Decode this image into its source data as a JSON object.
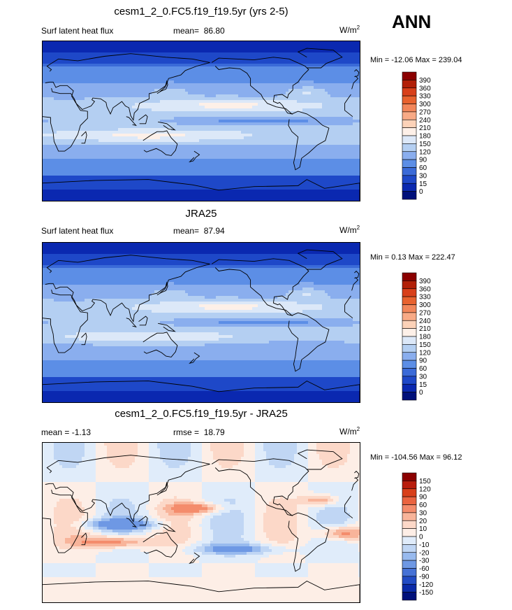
{
  "season": "ANN",
  "panels": [
    {
      "title": "cesm1_2_0.FC5.f19_f19.5yr (yrs 2-5)",
      "left_label": "Surf latent heat flux",
      "stat_label": "mean=",
      "stat_value": "86.80",
      "units": "W/m",
      "units_sup": "2",
      "minmax": "Min = -12.06 Max = 239.04",
      "palette": "abs"
    },
    {
      "title": "JRA25",
      "left_label": "Surf latent heat flux",
      "stat_label": "mean=",
      "stat_value": "87.94",
      "units": "W/m",
      "units_sup": "2",
      "minmax": "Min =  0.13 Max = 222.47",
      "palette": "abs"
    },
    {
      "title": "cesm1_2_0.FC5.f19_f19.5yr - JRA25",
      "left_label": "mean =  -1.13",
      "stat_label": "rmse =",
      "stat_value": "18.79",
      "units": "W/m",
      "units_sup": "2",
      "minmax": "Min = -104.56 Max =  96.12",
      "palette": "diff"
    }
  ],
  "chart_data": [
    {
      "type": "heatmap",
      "title": "cesm1_2_0.FC5.f19_f19.5yr (yrs 2-5)",
      "variable": "Surf latent heat flux",
      "units": "W/m2",
      "mean": 86.8,
      "min": -12.06,
      "max": 239.04,
      "colorbar_levels": [
        390,
        360,
        330,
        300,
        270,
        240,
        210,
        180,
        150,
        120,
        90,
        60,
        30,
        15,
        0
      ],
      "colorbar_colors": [
        "#8b0000",
        "#b22008",
        "#d8401a",
        "#e8622e",
        "#f2865a",
        "#f8aa86",
        "#fcd2b8",
        "#fdf0e8",
        "#dce8f8",
        "#b4cff2",
        "#8aaeee",
        "#5c8ee6",
        "#3a6ad8",
        "#1e48c8",
        "#0a28b0",
        "#00107a"
      ]
    },
    {
      "type": "heatmap",
      "title": "JRA25",
      "variable": "Surf latent heat flux",
      "units": "W/m2",
      "mean": 87.94,
      "min": 0.13,
      "max": 222.47,
      "colorbar_levels": [
        390,
        360,
        330,
        300,
        270,
        240,
        210,
        180,
        150,
        120,
        90,
        60,
        30,
        15,
        0
      ],
      "colorbar_colors": [
        "#8b0000",
        "#b22008",
        "#d8401a",
        "#e8622e",
        "#f2865a",
        "#f8aa86",
        "#fcd2b8",
        "#fdf0e8",
        "#dce8f8",
        "#b4cff2",
        "#8aaeee",
        "#5c8ee6",
        "#3a6ad8",
        "#1e48c8",
        "#0a28b0",
        "#00107a"
      ]
    },
    {
      "type": "heatmap",
      "title": "cesm1_2_0.FC5.f19_f19.5yr - JRA25",
      "units": "W/m2",
      "mean": -1.13,
      "rmse": 18.79,
      "min": -104.56,
      "max": 96.12,
      "colorbar_levels": [
        150,
        120,
        90,
        60,
        30,
        20,
        10,
        0,
        -10,
        -20,
        -30,
        -60,
        -90,
        -120,
        -150
      ],
      "colorbar_colors": [
        "#8b0000",
        "#b81c0c",
        "#d8401a",
        "#ea6440",
        "#f48c6c",
        "#f8b49a",
        "#fcd8c8",
        "#fdeee6",
        "#e0ecfa",
        "#c0d6f4",
        "#98baee",
        "#6e98e4",
        "#4672d6",
        "#224cc4",
        "#0a2aa8",
        "#00107a"
      ]
    }
  ]
}
